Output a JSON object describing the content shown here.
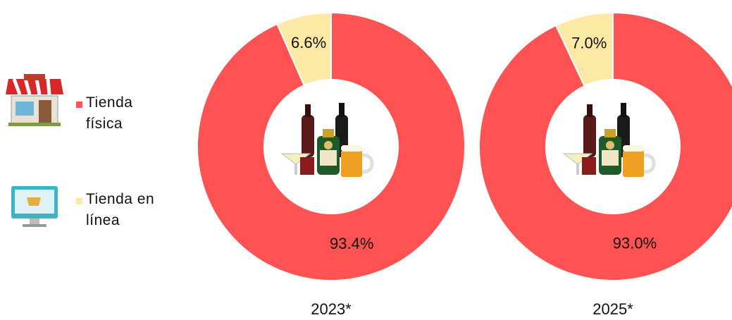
{
  "chart_data": {
    "type": "donut",
    "categories": [
      "Tienda física",
      "Tienda en línea"
    ],
    "colors": [
      "#ff5252",
      "#fde9a6"
    ],
    "series": [
      {
        "name": "2023*",
        "values": [
          93.4,
          6.6
        ],
        "value_labels": [
          "93.4%",
          "6.6%"
        ]
      },
      {
        "name": "2025*",
        "values": [
          93.0,
          7.0
        ],
        "value_labels": [
          "93.0%",
          "7.0%"
        ]
      }
    ]
  }
}
